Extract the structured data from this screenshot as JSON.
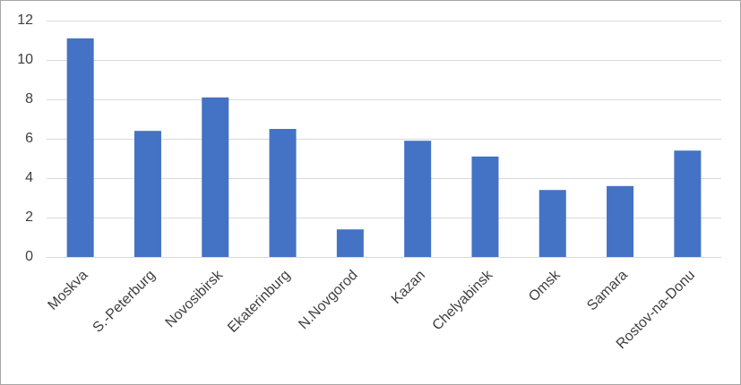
{
  "chart_data": {
    "type": "bar",
    "categories": [
      "Moskva",
      "S.-Peterburg",
      "Novosibirsk",
      "Ekaterinburg",
      "N.Novgorod",
      "Kazan",
      "Chelyabinsk",
      "Omsk",
      "Samara",
      "Rostov-na-Donu"
    ],
    "values": [
      11.1,
      6.4,
      8.1,
      6.5,
      1.4,
      5.9,
      5.1,
      3.4,
      3.6,
      5.4
    ],
    "color": "#4472c4",
    "ylim": [
      0,
      12
    ],
    "yticks": [
      0,
      2,
      4,
      6,
      8,
      10,
      12
    ],
    "grid": true
  }
}
